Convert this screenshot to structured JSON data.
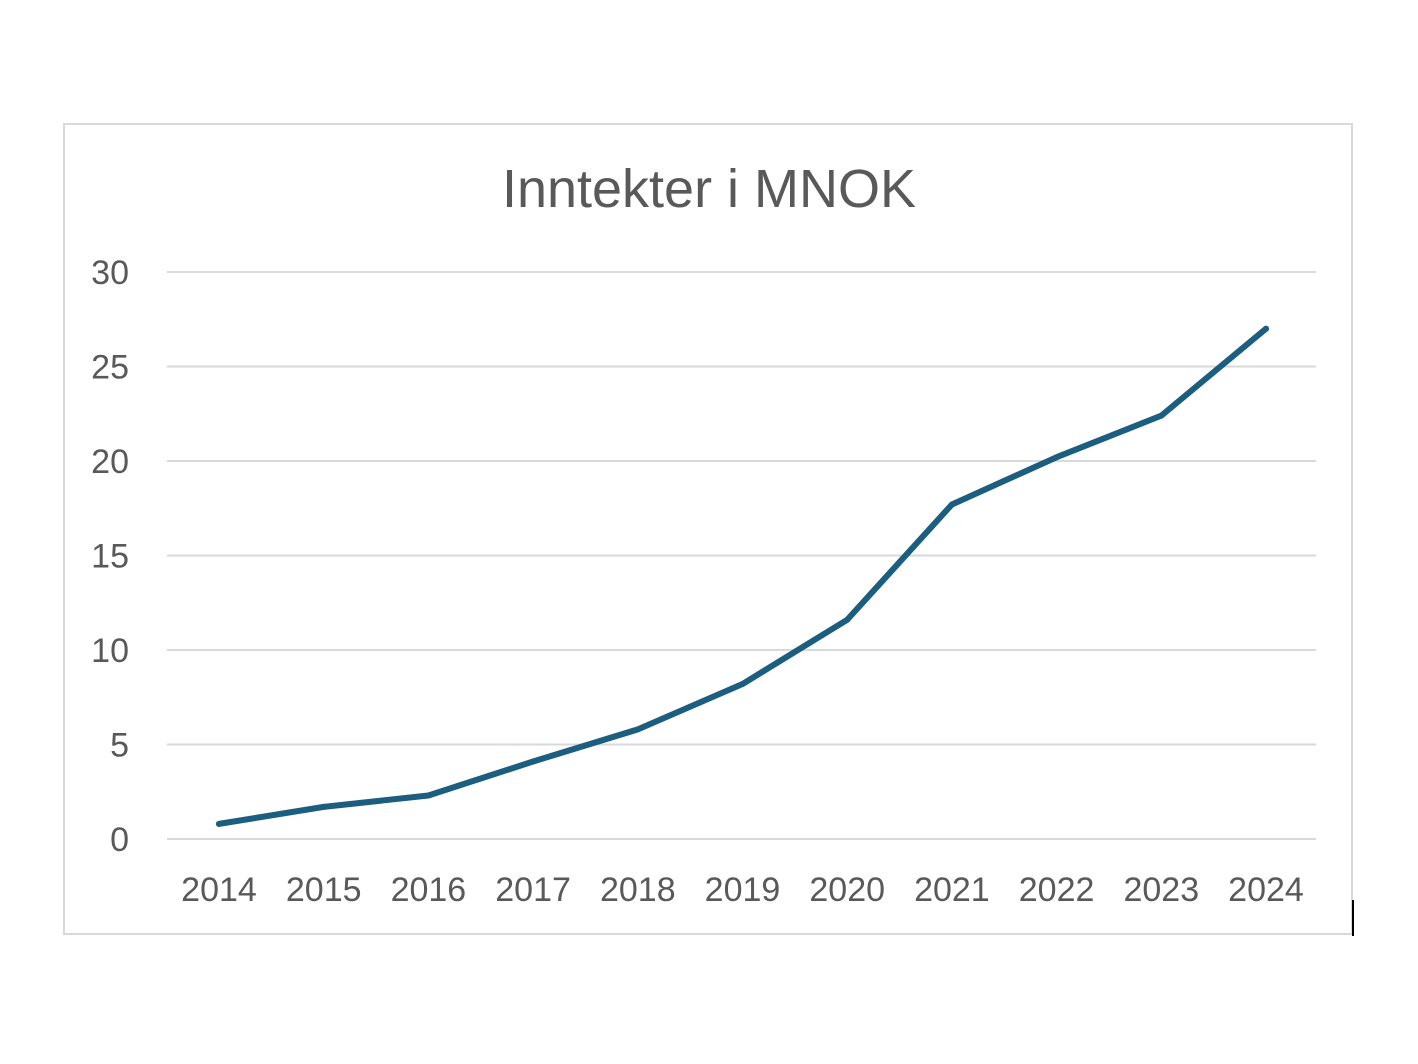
{
  "chart_data": {
    "type": "line",
    "title": "Inntekter i MNOK",
    "xlabel": "",
    "ylabel": "",
    "categories": [
      "2014",
      "2015",
      "2016",
      "2017",
      "2018",
      "2019",
      "2020",
      "2021",
      "2022",
      "2023",
      "2024"
    ],
    "series": [
      {
        "name": "Inntekter i MNOK",
        "color": "#1b5e80",
        "values": [
          0.8,
          1.7,
          2.3,
          4.1,
          5.8,
          8.2,
          11.6,
          17.7,
          20.2,
          22.4,
          27.0
        ]
      }
    ],
    "ylim": [
      0,
      30
    ],
    "yticks": [
      "0",
      "5",
      "10",
      "15",
      "20",
      "25",
      "30"
    ],
    "grid": true,
    "legend": "none",
    "colors": {
      "line": "#1b5e80",
      "grid": "#d9d9d9",
      "text": "#595959",
      "frame": "#d9d9d9"
    }
  }
}
